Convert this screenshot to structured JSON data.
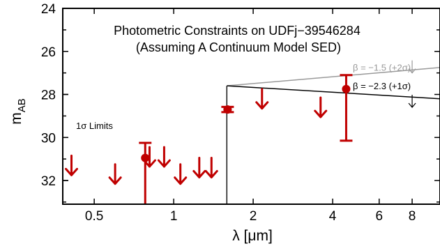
{
  "chart_data": {
    "type": "scatter",
    "title": [
      "Photometric Constraints on UDFj−39546284",
      "(Assuming A Continuum Model SED)"
    ],
    "xlabel": "λ [μm]",
    "ylabel_main": "m",
    "ylabel_sub": "AB",
    "x_scale": "log",
    "xlim": [
      0.38,
      10.2
    ],
    "ylim": [
      33.1,
      24.0
    ],
    "x_ticks": [
      {
        "value": 0.5,
        "label": "0.5"
      },
      {
        "value": 1,
        "label": "1"
      },
      {
        "value": 2,
        "label": "2"
      },
      {
        "value": 4,
        "label": "4"
      },
      {
        "value": 6,
        "label": "6"
      },
      {
        "value": 8,
        "label": "8"
      }
    ],
    "y_ticks": [
      {
        "value": 24,
        "label": "24"
      },
      {
        "value": 26,
        "label": "26"
      },
      {
        "value": 28,
        "label": "28"
      },
      {
        "value": 30,
        "label": "30"
      },
      {
        "value": 32,
        "label": "32"
      }
    ],
    "limits_label": "1σ Limits",
    "upper_limits": [
      {
        "x": 0.41,
        "y": 31.3
      },
      {
        "x": 0.6,
        "y": 31.7
      },
      {
        "x": 0.81,
        "y": 30.9
      },
      {
        "x": 0.92,
        "y": 30.9
      },
      {
        "x": 1.06,
        "y": 31.7
      },
      {
        "x": 1.25,
        "y": 31.4
      },
      {
        "x": 1.39,
        "y": 31.4
      },
      {
        "x": 2.16,
        "y": 28.2
      },
      {
        "x": 3.6,
        "y": 28.6
      }
    ],
    "detections": [
      {
        "x": 0.78,
        "y": 30.95,
        "err_lo": 0.7,
        "err_hi": 2.35
      },
      {
        "x": 1.6,
        "y": 28.7,
        "err_lo": 0.12,
        "err_hi": 0.12,
        "xerr": 0.04
      },
      {
        "x": 4.5,
        "y": 27.75,
        "err_lo": 0.65,
        "err_hi": 2.4
      }
    ],
    "models": [
      {
        "label": "β = −1.5 (+2σ)",
        "color": "#999999",
        "break_x": 1.59,
        "break_bottom": 33.1,
        "x": [
          1.59,
          10.2
        ],
        "y": [
          27.6,
          26.75
        ]
      },
      {
        "label": "β = −2.3 (+1σ)",
        "color": "#000000",
        "break_x": 1.59,
        "break_bottom": 33.1,
        "x": [
          1.59,
          10.2
        ],
        "y": [
          27.6,
          28.2
        ]
      }
    ],
    "model_limits": [
      {
        "x": 8.0,
        "y": 27.0,
        "color": "#999999"
      },
      {
        "x": 8.0,
        "y": 28.6,
        "color": "#000000"
      }
    ],
    "marker_color": "#c00000"
  }
}
